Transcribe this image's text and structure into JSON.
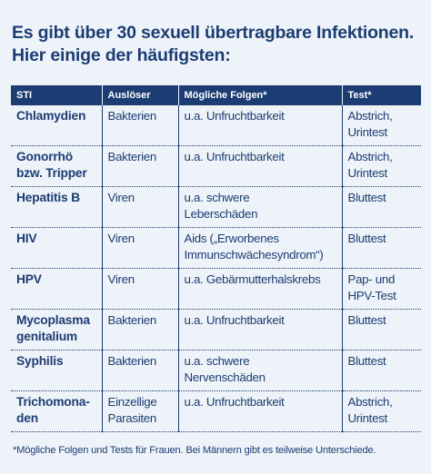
{
  "title": [
    "Es gibt über 30 sexuell übertragbare Infektionen.",
    "Hier einige der häufigsten:"
  ],
  "table": {
    "header": [
      "STI",
      "Auslöser",
      "Mögliche Folgen*",
      "Test*"
    ],
    "rows": [
      [
        [
          "Chlamydien"
        ],
        [
          "Bakterien"
        ],
        [
          "u.a. Unfruchtbarkeit"
        ],
        [
          "Abstrich,",
          "Urintest"
        ]
      ],
      [
        [
          "Gonorrhö",
          "bzw. Tripper"
        ],
        [
          "Bakterien"
        ],
        [
          "u.a. Unfruchtbarkeit"
        ],
        [
          "Abstrich,",
          "Urintest"
        ]
      ],
      [
        [
          "Hepatitis B"
        ],
        [
          "Viren"
        ],
        [
          "u.a. schwere",
          "Leberschäden"
        ],
        [
          "Bluttest"
        ]
      ],
      [
        [
          "HIV"
        ],
        [
          "Viren"
        ],
        [
          "Aids („Erworbenes",
          "Immunschwächesyndrom“)"
        ],
        [
          "Bluttest"
        ]
      ],
      [
        [
          "HPV"
        ],
        [
          "Viren"
        ],
        [
          "u.a. Gebärmutterhalskrebs"
        ],
        [
          "Pap- und",
          "HPV-Test"
        ]
      ],
      [
        [
          "Mycoplasma",
          "genitalium"
        ],
        [
          "Bakterien"
        ],
        [
          "u.a. Unfruchtbarkeit"
        ],
        [
          "Bluttest"
        ]
      ],
      [
        [
          "Syphilis"
        ],
        [
          "Bakterien"
        ],
        [
          "u.a. schwere",
          "Nervenschäden"
        ],
        [
          "Bluttest"
        ]
      ],
      [
        [
          "Trichomona-",
          "den"
        ],
        [
          "Einzellige",
          "Parasiten"
        ],
        [
          "u.a. Unfruchtbarkeit"
        ],
        [
          "Abstrich,",
          "Urintest"
        ]
      ]
    ]
  },
  "footnote": "*Mögliche Folgen und Tests für Frauen. Bei Männern gibt es teilweise Unterschiede."
}
